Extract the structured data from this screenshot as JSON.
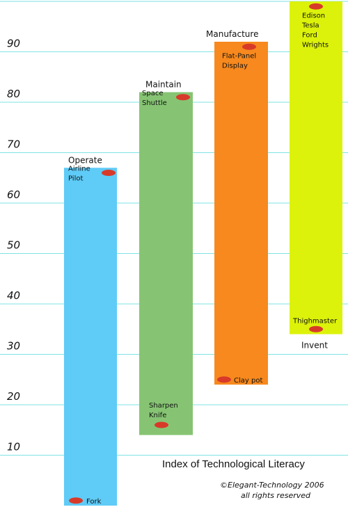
{
  "chart_data": {
    "type": "bar",
    "title": "Index of Technological Literacy",
    "credit_line1": "©Elegant-Technology 2006",
    "credit_line2": "all rights reserved",
    "ylim": [
      0,
      100
    ],
    "yticks": [
      "10",
      "20",
      "30",
      "40",
      "50",
      "60",
      "70",
      "80",
      "90",
      "100"
    ],
    "grid": true,
    "gridline_color": "#7fe3e3",
    "categories": [
      "Operate",
      "Maintain",
      "Manufacture",
      "Invent"
    ],
    "series": [
      {
        "category": "Operate",
        "low": 0,
        "high": 67,
        "color": "#5fcbf7",
        "annotations": [
          {
            "text": [
              "Airline",
              "Pilot"
            ],
            "value": 66
          },
          {
            "text": [
              "Fork"
            ],
            "value": 1
          }
        ]
      },
      {
        "category": "Maintain",
        "low": 14,
        "high": 82,
        "color": "#86c473",
        "annotations": [
          {
            "text": [
              "Space",
              "Shuttle"
            ],
            "value": 81
          },
          {
            "text": [
              "Sharpen",
              "Knife"
            ],
            "value": 16
          }
        ]
      },
      {
        "category": "Manufacture",
        "low": 24,
        "high": 92,
        "color": "#f7891e",
        "annotations": [
          {
            "text": [
              "Flat-Panel",
              "Display"
            ],
            "value": 91
          },
          {
            "text": [
              "Clay pot"
            ],
            "value": 25
          }
        ]
      },
      {
        "category": "Invent",
        "low": 34,
        "high": 100,
        "color": "#dcf20a",
        "annotations": [
          {
            "text": [
              "Edison",
              "Tesla",
              "Ford",
              "Wrights"
            ],
            "value": 99
          },
          {
            "text": [
              "Thighmaster"
            ],
            "value": 35
          }
        ]
      }
    ],
    "marker_color": "#d83a2a"
  }
}
